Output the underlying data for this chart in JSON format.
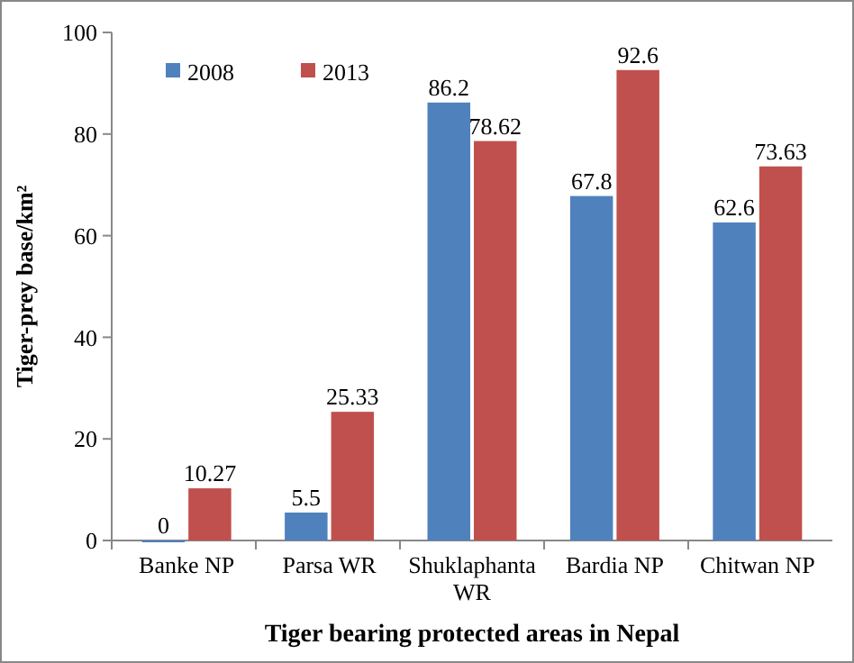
{
  "chart_data": {
    "type": "bar",
    "xlabel": "Tiger bearing protected areas in Nepal",
    "ylabel": "Tiger-prey base/km²",
    "categories": [
      "Banke NP",
      "Parsa WR",
      "Shuklaphanta WR",
      "Bardia NP",
      "Chitwan NP"
    ],
    "series": [
      {
        "name": "2008",
        "color": "#4f81bd",
        "values": [
          0,
          5.5,
          86.2,
          67.8,
          62.6
        ]
      },
      {
        "name": "2013",
        "color": "#c0504d",
        "values": [
          10.27,
          25.33,
          78.62,
          92.6,
          73.63
        ]
      }
    ],
    "ylim": [
      0,
      100
    ],
    "yticks": [
      0,
      20,
      40,
      60,
      80,
      100
    ],
    "data_labels": true,
    "legend": "top left"
  }
}
